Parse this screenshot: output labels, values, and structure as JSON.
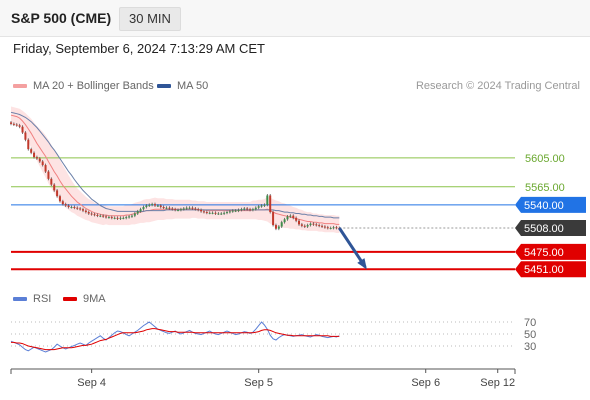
{
  "header": {
    "title": "S&P 500 (CME)",
    "interval": "30 MIN"
  },
  "datetime": "Friday, September 6, 2024 7:13:29 AM CET",
  "legend": {
    "ma20": {
      "label": "MA 20 + Bollinger Bands",
      "color": "#f08080"
    },
    "ma50": {
      "label": "MA 50",
      "color": "#2f5597"
    }
  },
  "credit": "Research © 2024 Trading Central",
  "rsi_legend": {
    "rsi": {
      "label": "RSI",
      "color": "#5b7fd6"
    },
    "ma9": {
      "label": "9MA",
      "color": "#e00000"
    }
  },
  "chart_data": {
    "type": "line",
    "series_type": "candlestick",
    "price_range": [
      5425,
      5685
    ],
    "time_range": [
      0,
      175
    ],
    "x_tick_labels": [
      {
        "label": "Sep 4",
        "t": 28
      },
      {
        "label": "Sep 5",
        "t": 86
      },
      {
        "label": "Sep 6",
        "t": 144
      },
      {
        "label": "Sep 12",
        "t": 169
      }
    ],
    "price_series": [
      5652,
      5651,
      5650,
      5648,
      5640,
      5630,
      5617,
      5612,
      5606,
      5604,
      5600,
      5595,
      5586,
      5576,
      5568,
      5560,
      5552,
      5545,
      5541,
      5539,
      5537,
      5537,
      5536,
      5535,
      5534,
      5532,
      5530,
      5528,
      5527,
      5526,
      5525,
      5525,
      5524,
      5523,
      5523,
      5522,
      5522,
      5521,
      5522,
      5522,
      5523,
      5524,
      5525,
      5528,
      5531,
      5534,
      5537,
      5539,
      5540,
      5541,
      5539,
      5539,
      5537,
      5536,
      5536,
      5535,
      5534,
      5533,
      5533,
      5534,
      5535,
      5536,
      5536,
      5535,
      5534,
      5533,
      5531,
      5530,
      5529,
      5529,
      5529,
      5528,
      5528,
      5528,
      5529,
      5530,
      5531,
      5532,
      5532,
      5533,
      5534,
      5535,
      5534,
      5533,
      5534,
      5536,
      5538,
      5539,
      5540,
      5553,
      5530,
      5512,
      5507,
      5510,
      5516,
      5520,
      5524,
      5525,
      5522,
      5518,
      5513,
      5511,
      5510,
      5512,
      5514,
      5513,
      5512,
      5511,
      5510,
      5509,
      5508,
      5508,
      5509,
      5508,
      5507
    ],
    "ma20_series": [
      5664,
      5663,
      5662,
      5660,
      5656,
      5651,
      5645,
      5639,
      5632,
      5625,
      5619,
      5613,
      5607,
      5600,
      5593,
      5586,
      5580,
      5573,
      5567,
      5562,
      5557,
      5552,
      5548,
      5544,
      5541,
      5538,
      5535,
      5533,
      5531,
      5529,
      5528,
      5527,
      5526,
      5526,
      5525,
      5525,
      5525,
      5525,
      5525,
      5525,
      5526,
      5526,
      5527,
      5528,
      5529,
      5530,
      5531,
      5532,
      5532,
      5533,
      5534,
      5534,
      5534,
      5534,
      5534,
      5534,
      5534,
      5534,
      5534,
      5534,
      5534,
      5534,
      5534,
      5534,
      5534,
      5533,
      5533,
      5533,
      5532,
      5532,
      5532,
      5532,
      5532,
      5532,
      5532,
      5532,
      5532,
      5532,
      5532,
      5532,
      5532,
      5532,
      5532,
      5532,
      5533,
      5533,
      5533,
      5533,
      5533,
      5534,
      5532,
      5530,
      5528,
      5527,
      5526,
      5525,
      5524,
      5523,
      5522,
      5521,
      5520,
      5519,
      5518,
      5517,
      5517,
      5516,
      5516,
      5515,
      5515,
      5514,
      5514,
      5514,
      5514,
      5513,
      5513
    ],
    "ma50_series": [
      5668,
      5667,
      5666,
      5665,
      5663,
      5661,
      5658,
      5655,
      5651,
      5647,
      5642,
      5637,
      5632,
      5627,
      5621,
      5616,
      5610,
      5604,
      5598,
      5592,
      5586,
      5581,
      5575,
      5570,
      5565,
      5560,
      5556,
      5552,
      5548,
      5545,
      5542,
      5539,
      5537,
      5535,
      5534,
      5533,
      5532,
      5531,
      5531,
      5531,
      5531,
      5531,
      5531,
      5531,
      5531,
      5531,
      5531,
      5532,
      5532,
      5532,
      5532,
      5532,
      5532,
      5532,
      5533,
      5533,
      5533,
      5533,
      5533,
      5533,
      5533,
      5533,
      5533,
      5533,
      5533,
      5533,
      5533,
      5533,
      5533,
      5533,
      5533,
      5533,
      5533,
      5533,
      5533,
      5533,
      5533,
      5533,
      5533,
      5533,
      5533,
      5533,
      5533,
      5533,
      5533,
      5533,
      5533,
      5533,
      5533,
      5533,
      5533,
      5533,
      5532,
      5532,
      5531,
      5530,
      5530,
      5529,
      5529,
      5528,
      5528,
      5527,
      5527,
      5526,
      5526,
      5525,
      5525,
      5524,
      5524,
      5523,
      5523,
      5523,
      5522,
      5522,
      5522
    ],
    "bollinger_width": [
      12,
      12,
      12,
      13,
      14,
      16,
      18,
      20,
      22,
      24,
      26,
      28,
      29,
      30,
      30,
      30,
      30,
      29,
      28,
      26,
      24,
      22,
      20,
      19,
      18,
      17,
      16,
      15,
      15,
      14,
      14,
      14,
      14,
      13,
      13,
      13,
      13,
      13,
      13,
      13,
      14,
      14,
      14,
      15,
      15,
      15,
      16,
      16,
      16,
      16,
      16,
      15,
      15,
      15,
      14,
      14,
      14,
      13,
      13,
      13,
      13,
      13,
      13,
      12,
      12,
      12,
      12,
      12,
      12,
      12,
      12,
      12,
      12,
      12,
      12,
      12,
      12,
      12,
      12,
      12,
      12,
      12,
      12,
      12,
      13,
      13,
      14,
      14,
      15,
      17,
      18,
      18,
      18,
      18,
      17,
      17,
      16,
      16,
      15,
      15,
      14,
      14,
      13,
      13,
      13,
      12,
      12,
      12,
      12,
      12,
      12,
      12,
      12,
      12,
      12
    ],
    "levels": [
      {
        "value": 5605,
        "label": "5605.00",
        "kind": "resistance",
        "color": "#8cc34a"
      },
      {
        "value": 5565,
        "label": "5565.00",
        "kind": "resistance",
        "color": "#8cc34a"
      },
      {
        "value": 5540,
        "label": "5540.00",
        "kind": "pivot",
        "color": "#2173e5"
      },
      {
        "value": 5508,
        "label": "5508.00",
        "kind": "last",
        "color": "#3a3a3a"
      },
      {
        "value": 5475,
        "label": "5475.00",
        "kind": "support",
        "color": "#e00000"
      },
      {
        "value": 5451,
        "label": "5451.00",
        "kind": "support",
        "color": "#e00000"
      }
    ],
    "arrow": {
      "from_t": 114,
      "from_price": 5508,
      "to_t": 123,
      "to_price": 5454,
      "color": "#2f5597"
    },
    "rsi": {
      "range": [
        0,
        100
      ],
      "ticks": [
        70,
        50,
        30
      ],
      "series": [
        38,
        36,
        34,
        32,
        28,
        24,
        22,
        25,
        28,
        26,
        24,
        22,
        20,
        22,
        24,
        28,
        33,
        30,
        27,
        25,
        27,
        29,
        31,
        33,
        35,
        33,
        31,
        35,
        38,
        41,
        44,
        47,
        43,
        40,
        44,
        48,
        52,
        55,
        54,
        52,
        49,
        47,
        50,
        53,
        56,
        60,
        64,
        67,
        70,
        66,
        62,
        58,
        56,
        54,
        52,
        51,
        53,
        55,
        52,
        50,
        52,
        54,
        56,
        53,
        51,
        50,
        49,
        51,
        53,
        55,
        52,
        50,
        49,
        51,
        53,
        55,
        53,
        51,
        49,
        50,
        52,
        54,
        53,
        51,
        53,
        58,
        64,
        70,
        65,
        58,
        48,
        42,
        40,
        44,
        47,
        49,
        48,
        47,
        46,
        47,
        48,
        49,
        47,
        46,
        45,
        47,
        49,
        48,
        46,
        45,
        44,
        45,
        46,
        45,
        47
      ],
      "ma9_series": [
        36,
        36,
        35,
        35,
        34,
        32,
        30,
        29,
        28,
        27,
        26,
        25,
        24,
        24,
        24,
        24,
        25,
        26,
        27,
        27,
        27,
        27,
        28,
        29,
        30,
        31,
        31,
        32,
        33,
        35,
        37,
        39,
        40,
        41,
        43,
        45,
        47,
        49,
        51,
        52,
        52,
        52,
        52,
        52,
        53,
        54,
        55,
        57,
        58,
        59,
        59,
        58,
        57,
        56,
        55,
        54,
        54,
        54,
        53,
        53,
        53,
        53,
        53,
        53,
        52,
        52,
        52,
        52,
        52,
        52,
        52,
        52,
        52,
        52,
        52,
        52,
        52,
        52,
        52,
        52,
        52,
        52,
        52,
        52,
        52,
        53,
        54,
        56,
        57,
        57,
        56,
        54,
        52,
        51,
        50,
        49,
        48,
        48,
        47,
        47,
        47,
        47,
        47,
        47,
        47,
        47,
        47,
        47,
        47,
        47,
        47,
        46,
        46,
        46,
        46
      ]
    }
  }
}
